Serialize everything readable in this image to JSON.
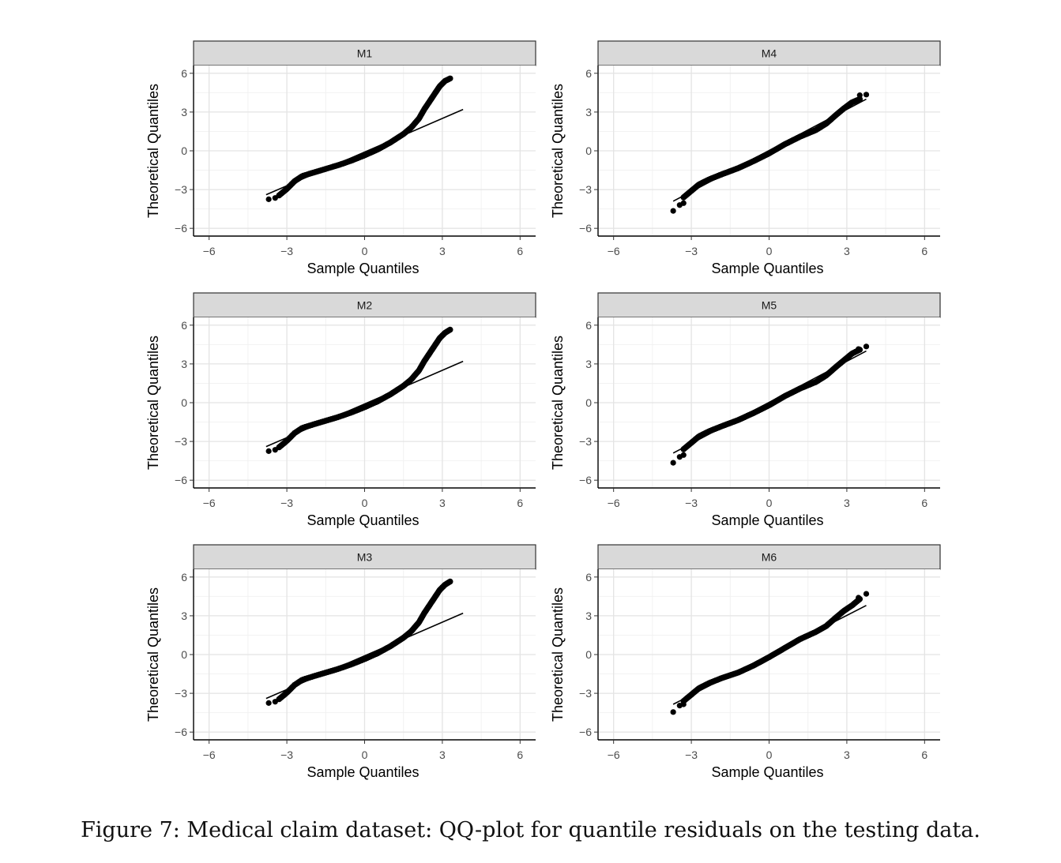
{
  "caption": "Figure 7: Medical claim dataset: QQ-plot for quantile residuals on the testing data.",
  "chart_data": [
    {
      "type": "scatter",
      "title": "M1",
      "xlabel": "Sample Quantiles",
      "ylabel": "Theoretical Quantiles",
      "xlim": [
        -6.6,
        6.6
      ],
      "ylim": [
        -6.6,
        6.6
      ],
      "xticks": [
        -6,
        -3,
        0,
        3,
        6
      ],
      "yticks": [
        -6,
        -3,
        0,
        3,
        6
      ],
      "xtick_labels": [
        "−6",
        "−3",
        "0",
        "3",
        "6"
      ],
      "ytick_labels": [
        "−6",
        "−3",
        "0",
        "3",
        "6"
      ],
      "grid": true,
      "curve": [
        [
          -3.3,
          -3.45
        ],
        [
          -3.0,
          -2.95
        ],
        [
          -2.7,
          -2.35
        ],
        [
          -2.4,
          -1.95
        ],
        [
          -2.0,
          -1.7
        ],
        [
          -1.5,
          -1.4
        ],
        [
          -1.0,
          -1.1
        ],
        [
          -0.5,
          -0.75
        ],
        [
          0.0,
          -0.35
        ],
        [
          0.5,
          0.1
        ],
        [
          1.0,
          0.65
        ],
        [
          1.5,
          1.3
        ],
        [
          1.8,
          1.8
        ],
        [
          2.1,
          2.5
        ],
        [
          2.3,
          3.2
        ],
        [
          2.5,
          3.8
        ],
        [
          2.7,
          4.4
        ],
        [
          2.9,
          5.0
        ],
        [
          3.1,
          5.4
        ],
        [
          3.3,
          5.6
        ]
      ],
      "outliers": [
        [
          -3.7,
          -3.75
        ],
        [
          -3.45,
          -3.65
        ]
      ],
      "reference_line": [
        [
          -3.8,
          -3.4
        ],
        [
          3.8,
          3.2
        ]
      ]
    },
    {
      "type": "scatter",
      "title": "M4",
      "xlabel": "Sample Quantiles",
      "ylabel": "Theoretical Quantiles",
      "xlim": [
        -6.6,
        6.6
      ],
      "ylim": [
        -6.6,
        6.6
      ],
      "xticks": [
        -6,
        -3,
        0,
        3,
        6
      ],
      "yticks": [
        -6,
        -3,
        0,
        3,
        6
      ],
      "xtick_labels": [
        "−6",
        "−3",
        "0",
        "3",
        "6"
      ],
      "ytick_labels": [
        "−6",
        "−3",
        "0",
        "3",
        "6"
      ],
      "grid": true,
      "curve": [
        [
          -3.3,
          -3.6
        ],
        [
          -3.0,
          -3.1
        ],
        [
          -2.7,
          -2.6
        ],
        [
          -2.3,
          -2.2
        ],
        [
          -1.8,
          -1.8
        ],
        [
          -1.2,
          -1.35
        ],
        [
          -0.6,
          -0.8
        ],
        [
          0.0,
          -0.2
        ],
        [
          0.6,
          0.5
        ],
        [
          1.2,
          1.1
        ],
        [
          1.8,
          1.6
        ],
        [
          2.2,
          2.1
        ],
        [
          2.6,
          2.8
        ],
        [
          2.9,
          3.3
        ],
        [
          3.2,
          3.75
        ],
        [
          3.5,
          4.0
        ]
      ],
      "outliers": [
        [
          -3.7,
          -4.65
        ],
        [
          -3.45,
          -4.2
        ],
        [
          -3.3,
          -4.05
        ],
        [
          3.5,
          4.3
        ],
        [
          3.75,
          4.35
        ]
      ],
      "reference_line": [
        [
          -3.7,
          -3.9
        ],
        [
          3.75,
          4.0
        ]
      ]
    },
    {
      "type": "scatter",
      "title": "M2",
      "xlabel": "Sample Quantiles",
      "ylabel": "Theoretical Quantiles",
      "xlim": [
        -6.6,
        6.6
      ],
      "ylim": [
        -6.6,
        6.6
      ],
      "xticks": [
        -6,
        -3,
        0,
        3,
        6
      ],
      "yticks": [
        -6,
        -3,
        0,
        3,
        6
      ],
      "xtick_labels": [
        "−6",
        "−3",
        "0",
        "3",
        "6"
      ],
      "ytick_labels": [
        "−6",
        "−3",
        "0",
        "3",
        "6"
      ],
      "grid": true,
      "curve": [
        [
          -3.3,
          -3.45
        ],
        [
          -3.0,
          -2.95
        ],
        [
          -2.7,
          -2.35
        ],
        [
          -2.4,
          -1.95
        ],
        [
          -2.0,
          -1.7
        ],
        [
          -1.5,
          -1.4
        ],
        [
          -1.0,
          -1.1
        ],
        [
          -0.5,
          -0.75
        ],
        [
          0.0,
          -0.35
        ],
        [
          0.5,
          0.1
        ],
        [
          1.0,
          0.65
        ],
        [
          1.5,
          1.3
        ],
        [
          1.8,
          1.8
        ],
        [
          2.1,
          2.5
        ],
        [
          2.3,
          3.2
        ],
        [
          2.5,
          3.8
        ],
        [
          2.7,
          4.4
        ],
        [
          2.9,
          5.0
        ],
        [
          3.1,
          5.4
        ],
        [
          3.3,
          5.65
        ]
      ],
      "outliers": [
        [
          -3.7,
          -3.75
        ],
        [
          -3.45,
          -3.65
        ]
      ],
      "reference_line": [
        [
          -3.8,
          -3.4
        ],
        [
          3.8,
          3.2
        ]
      ]
    },
    {
      "type": "scatter",
      "title": "M5",
      "xlabel": "Sample Quantiles",
      "ylabel": "Theoretical Quantiles",
      "xlim": [
        -6.6,
        6.6
      ],
      "ylim": [
        -6.6,
        6.6
      ],
      "xticks": [
        -6,
        -3,
        0,
        3,
        6
      ],
      "yticks": [
        -6,
        -3,
        0,
        3,
        6
      ],
      "xtick_labels": [
        "−6",
        "−3",
        "0",
        "3",
        "6"
      ],
      "ytick_labels": [
        "−6",
        "−3",
        "0",
        "3",
        "6"
      ],
      "grid": true,
      "curve": [
        [
          -3.3,
          -3.6
        ],
        [
          -3.0,
          -3.1
        ],
        [
          -2.7,
          -2.6
        ],
        [
          -2.3,
          -2.2
        ],
        [
          -1.8,
          -1.8
        ],
        [
          -1.2,
          -1.35
        ],
        [
          -0.6,
          -0.8
        ],
        [
          0.0,
          -0.2
        ],
        [
          0.6,
          0.5
        ],
        [
          1.2,
          1.1
        ],
        [
          1.8,
          1.6
        ],
        [
          2.2,
          2.1
        ],
        [
          2.6,
          2.8
        ],
        [
          2.9,
          3.3
        ],
        [
          3.2,
          3.8
        ],
        [
          3.5,
          4.1
        ]
      ],
      "outliers": [
        [
          -3.7,
          -4.65
        ],
        [
          -3.45,
          -4.2
        ],
        [
          -3.3,
          -4.05
        ],
        [
          3.45,
          4.15
        ],
        [
          3.75,
          4.35
        ]
      ],
      "reference_line": [
        [
          -3.7,
          -3.9
        ],
        [
          3.75,
          4.0
        ]
      ]
    },
    {
      "type": "scatter",
      "title": "M3",
      "xlabel": "Sample Quantiles",
      "ylabel": "Theoretical Quantiles",
      "xlim": [
        -6.6,
        6.6
      ],
      "ylim": [
        -6.6,
        6.6
      ],
      "xticks": [
        -6,
        -3,
        0,
        3,
        6
      ],
      "yticks": [
        -6,
        -3,
        0,
        3,
        6
      ],
      "xtick_labels": [
        "−6",
        "−3",
        "0",
        "3",
        "6"
      ],
      "ytick_labels": [
        "−6",
        "−3",
        "0",
        "3",
        "6"
      ],
      "grid": true,
      "curve": [
        [
          -3.3,
          -3.45
        ],
        [
          -3.0,
          -2.95
        ],
        [
          -2.7,
          -2.35
        ],
        [
          -2.4,
          -1.95
        ],
        [
          -2.0,
          -1.7
        ],
        [
          -1.5,
          -1.4
        ],
        [
          -1.0,
          -1.1
        ],
        [
          -0.5,
          -0.75
        ],
        [
          0.0,
          -0.35
        ],
        [
          0.5,
          0.1
        ],
        [
          1.0,
          0.65
        ],
        [
          1.5,
          1.3
        ],
        [
          1.8,
          1.8
        ],
        [
          2.1,
          2.5
        ],
        [
          2.3,
          3.2
        ],
        [
          2.5,
          3.8
        ],
        [
          2.7,
          4.4
        ],
        [
          2.9,
          5.0
        ],
        [
          3.1,
          5.4
        ],
        [
          3.3,
          5.65
        ]
      ],
      "outliers": [
        [
          -3.7,
          -3.75
        ],
        [
          -3.45,
          -3.65
        ]
      ],
      "reference_line": [
        [
          -3.8,
          -3.4
        ],
        [
          3.8,
          3.2
        ]
      ]
    },
    {
      "type": "scatter",
      "title": "M6",
      "xlabel": "Sample Quantiles",
      "ylabel": "Theoretical Quantiles",
      "xlim": [
        -6.6,
        6.6
      ],
      "ylim": [
        -6.6,
        6.6
      ],
      "xticks": [
        -6,
        -3,
        0,
        3,
        6
      ],
      "yticks": [
        -6,
        -3,
        0,
        3,
        6
      ],
      "xtick_labels": [
        "−6",
        "−3",
        "0",
        "3",
        "6"
      ],
      "ytick_labels": [
        "−6",
        "−3",
        "0",
        "3",
        "6"
      ],
      "grid": true,
      "curve": [
        [
          -3.3,
          -3.6
        ],
        [
          -3.0,
          -3.1
        ],
        [
          -2.7,
          -2.6
        ],
        [
          -2.3,
          -2.2
        ],
        [
          -1.8,
          -1.8
        ],
        [
          -1.2,
          -1.4
        ],
        [
          -0.6,
          -0.85
        ],
        [
          0.0,
          -0.2
        ],
        [
          0.6,
          0.5
        ],
        [
          1.2,
          1.2
        ],
        [
          1.8,
          1.75
        ],
        [
          2.2,
          2.2
        ],
        [
          2.6,
          2.9
        ],
        [
          2.9,
          3.4
        ],
        [
          3.2,
          3.8
        ],
        [
          3.5,
          4.3
        ]
      ],
      "outliers": [
        [
          -3.7,
          -4.45
        ],
        [
          -3.45,
          -3.95
        ],
        [
          -3.3,
          -3.85
        ],
        [
          3.45,
          4.4
        ],
        [
          3.75,
          4.7
        ]
      ],
      "reference_line": [
        [
          -3.7,
          -3.85
        ],
        [
          3.75,
          3.8
        ]
      ]
    }
  ]
}
